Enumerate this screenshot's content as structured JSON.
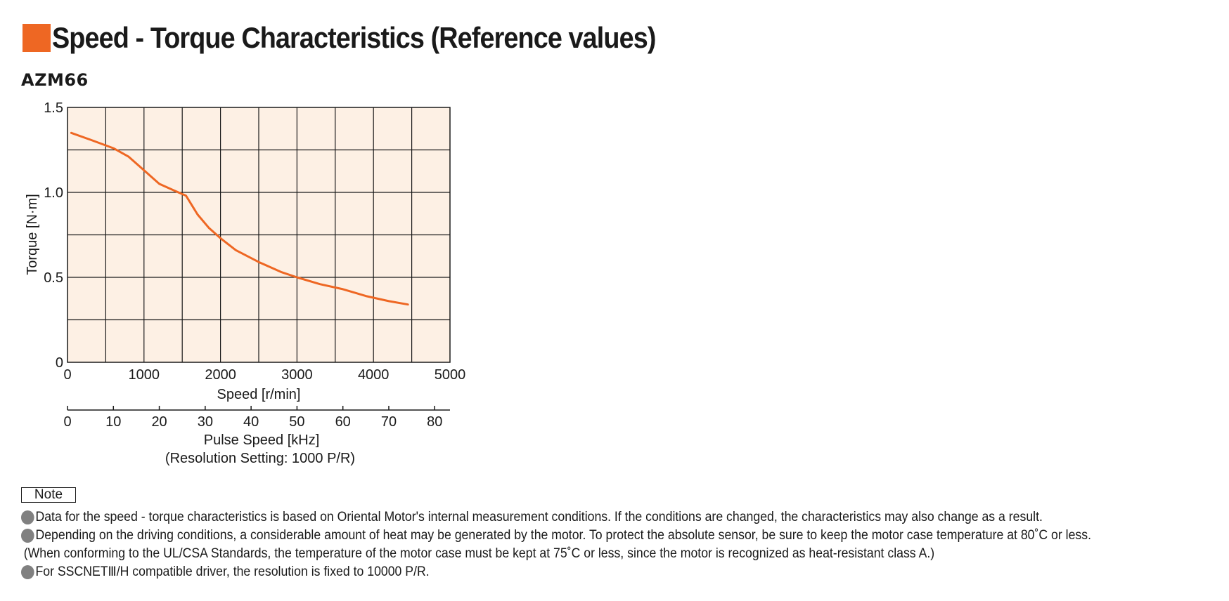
{
  "header": {
    "title": "Speed - Torque Characteristics (Reference values)",
    "accent_color": "#ee6723"
  },
  "model": "AZM66",
  "chart_data": {
    "type": "line",
    "title": "",
    "xlabel": "Speed [r/min]",
    "ylabel": "Torque [N·m]",
    "xlim": [
      0,
      5000
    ],
    "ylim": [
      0,
      1.5
    ],
    "x_ticks": [
      0,
      1000,
      2000,
      3000,
      4000,
      5000
    ],
    "y_ticks": [
      0,
      0.5,
      1.0,
      1.5
    ],
    "x_tick_labels": [
      "0",
      "1000",
      "2000",
      "3000",
      "4000",
      "5000"
    ],
    "y_tick_labels": [
      "0",
      "0.5",
      "1.0",
      "1.5"
    ],
    "grid": true,
    "plot_background": "#fdf0e4",
    "line_color": "#ee6723",
    "series": [
      {
        "x": [
          50,
          300,
          600,
          800,
          1000,
          1200,
          1400,
          1550,
          1700,
          1850,
          2000,
          2200,
          2500,
          2800,
          3000,
          3300,
          3600,
          3900,
          4200,
          4450
        ],
        "values": [
          1.35,
          1.31,
          1.26,
          1.21,
          1.13,
          1.05,
          1.01,
          0.98,
          0.87,
          0.79,
          0.73,
          0.66,
          0.59,
          0.53,
          0.5,
          0.46,
          0.43,
          0.39,
          0.36,
          0.34
        ]
      }
    ],
    "secondary_axis": {
      "label_line1": "Pulse Speed [kHz]",
      "label_line2": "(Resolution Setting: 1000 P/R)",
      "range": [
        0,
        83.33
      ],
      "ticks": [
        0,
        10,
        20,
        30,
        40,
        50,
        60,
        70,
        80
      ],
      "tick_labels": [
        "0",
        "10",
        "20",
        "30",
        "40",
        "50",
        "60",
        "70",
        "80"
      ]
    }
  },
  "notes": {
    "label": "Note",
    "bullet_color": "#808080",
    "items": [
      "Data for the speed - torque characteristics is based on Oriental Motor's internal measurement conditions. If the conditions are changed, the characteristics may also change as a result.",
      "Depending on the driving conditions, a considerable amount of heat may be generated by the motor.  To protect the absolute sensor, be sure to keep the motor case temperature at 80˚C or less.",
      "(When conforming to the UL/CSA Standards, the temperature of the motor case must be kept at 75˚C or less, since the motor is recognized as heat-resistant class A.)",
      "For SSCNETⅢ/H compatible driver, the resolution is fixed to 10000 P/R."
    ]
  }
}
